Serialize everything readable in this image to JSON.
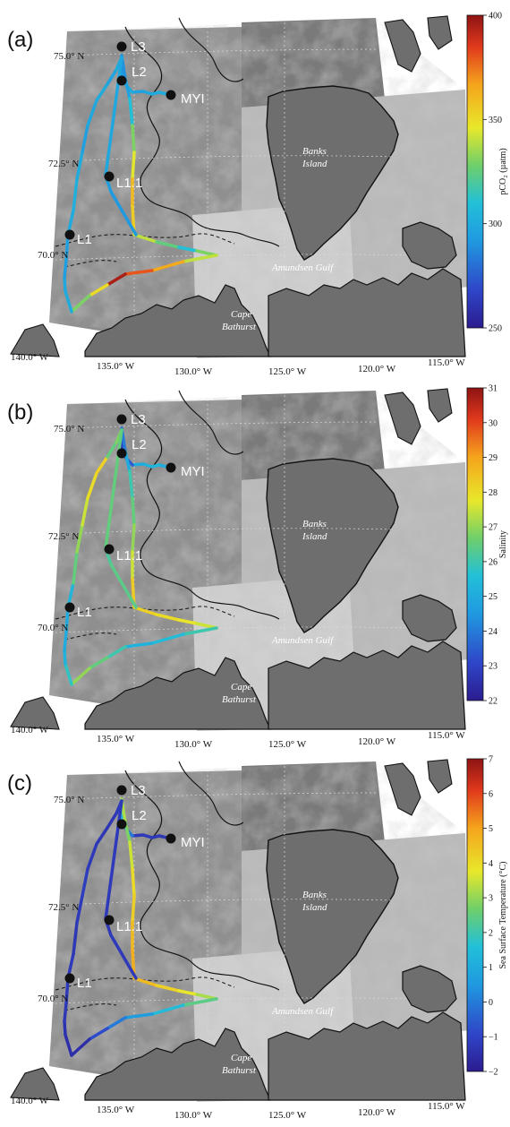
{
  "panels": [
    {
      "label": "(a)",
      "colorbar": {
        "title": "pCO₂ (µatm)",
        "ticks": [
          "400",
          "350",
          "300",
          "250"
        ],
        "min": 250,
        "max": 400
      },
      "track_values": [
        300,
        300,
        298,
        296,
        300,
        292,
        288,
        290,
        296,
        310,
        330,
        345,
        360,
        355,
        340,
        325,
        310,
        330,
        340,
        365,
        380,
        395,
        350,
        330,
        300,
        298,
        294,
        295,
        300,
        302,
        300,
        295,
        298,
        300,
        296,
        300,
        298,
        294,
        292,
        290
      ]
    },
    {
      "label": "(b)",
      "colorbar": {
        "title": "Salinity",
        "ticks": [
          "31",
          "30",
          "29",
          "28",
          "27",
          "26",
          "25",
          "24",
          "23",
          "22"
        ],
        "min": 22,
        "max": 31
      },
      "track_values": [
        25,
        25.3,
        25.2,
        25,
        23.5,
        22.8,
        23,
        24,
        25,
        26,
        26.5,
        27,
        27.5,
        28.3,
        28.2,
        28,
        27.8,
        27.5,
        26,
        25.5,
        25.2,
        26,
        26.5,
        27,
        25.8,
        25.2,
        25,
        25,
        25.3,
        26.5,
        27,
        27.5,
        28,
        28.2,
        26.5,
        26.8,
        26.5,
        26.2,
        26.4,
        26
      ]
    },
    {
      "label": "(c)",
      "colorbar": {
        "title": "Sea Surface Temperature (°C)",
        "ticks": [
          "7",
          "6",
          "5",
          "4",
          "3",
          "2",
          "1",
          "0",
          "−1",
          "−2"
        ],
        "min": -2,
        "max": 7
      },
      "track_values": [
        -1.3,
        -1.3,
        -1.2,
        -1.2,
        0,
        1.2,
        2,
        3.2,
        2.8,
        3.5,
        4,
        4.2,
        4.6,
        4.8,
        4.6,
        4.2,
        3.8,
        3.2,
        2.4,
        1.5,
        0.6,
        0,
        -0.8,
        -1.5,
        -1.5,
        -1.4,
        -1.3,
        -1.2,
        -1.2,
        -1.3,
        -1.2,
        -1.1,
        -1.2,
        -1.3,
        -1.3,
        -1.2,
        -1.2,
        -1.3,
        -1.2,
        -1.3
      ]
    }
  ],
  "map": {
    "lat_labels": [
      "75.0° N",
      "72.5° N",
      "70.0° N"
    ],
    "lon_labels": [
      "140.0° W",
      "135.0° W",
      "130.0° W",
      "125.0° W",
      "120.0° W",
      "115.0° W"
    ],
    "stations": [
      "L3",
      "L2",
      "MYI",
      "L1.1",
      "L1"
    ],
    "place_banks_line1": "Banks",
    "place_banks_line2": "Island",
    "place_amundsen": "Amundsen Gulf",
    "place_cape_line1": "Cape",
    "place_cape_line2": "Bathurst"
  },
  "colors": {
    "land": "#6e6e6e",
    "ice_light": "#c8c8c8",
    "ice_dark": "#8a8a8a",
    "station_dot": "#111111"
  }
}
